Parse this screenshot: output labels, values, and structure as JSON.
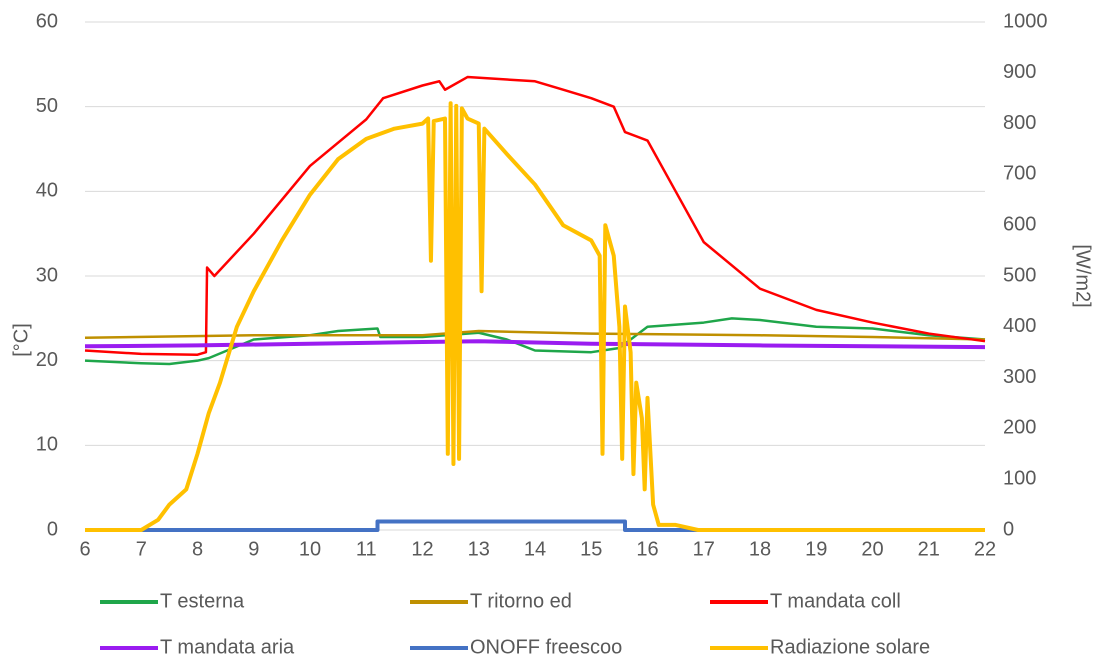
{
  "chart_data": {
    "type": "line",
    "ylabel": "[°C]",
    "y2label": "[W/m2]",
    "xlim": [
      6,
      22
    ],
    "xticks": [
      6,
      7,
      8,
      9,
      10,
      11,
      12,
      13,
      14,
      15,
      16,
      17,
      18,
      19,
      20,
      21,
      22
    ],
    "ylim": [
      0,
      60
    ],
    "yticks": [
      0,
      10,
      20,
      30,
      40,
      50,
      60
    ],
    "y2lim": [
      0,
      1000
    ],
    "y2ticks": [
      0,
      100,
      200,
      300,
      400,
      500,
      600,
      700,
      800,
      900,
      1000
    ],
    "grid": true,
    "legend": "bottom",
    "series": [
      {
        "name": "T esterna",
        "color": "#1fa64a",
        "x": [
          6,
          7,
          7.5,
          8,
          8.2,
          9,
          10,
          10.5,
          11.2,
          11.25,
          12,
          13,
          13.5,
          14,
          15,
          15.5,
          16,
          17,
          17.5,
          18,
          19,
          20,
          21,
          22
        ],
        "values": [
          20,
          19.7,
          19.6,
          20,
          20.3,
          22.5,
          23,
          23.5,
          23.8,
          22.8,
          22.8,
          23.3,
          22.5,
          21.2,
          21,
          21.5,
          24,
          24.5,
          25,
          24.8,
          24,
          23.8,
          23,
          22.5
        ]
      },
      {
        "name": "T ritorno ed",
        "color": "#bf9000",
        "x": [
          6,
          9,
          12,
          13,
          15,
          18,
          20,
          22
        ],
        "values": [
          22.7,
          23,
          23,
          23.5,
          23.2,
          23,
          22.8,
          22.5
        ]
      },
      {
        "name": "T mandata coll",
        "color": "#ff0000",
        "x": [
          6,
          7,
          8,
          8.15,
          8.17,
          8.3,
          9,
          10,
          11,
          11.3,
          12,
          12.3,
          12.4,
          12.8,
          14,
          14.5,
          15,
          15.4,
          15.6,
          16,
          16.5,
          17,
          18,
          19,
          20,
          21,
          22
        ],
        "values": [
          21.2,
          20.8,
          20.7,
          21,
          31,
          30,
          35,
          43,
          48.5,
          51,
          52.5,
          53,
          52,
          53.5,
          53,
          52,
          51,
          50,
          47,
          46,
          40,
          34,
          28.5,
          26,
          24.5,
          23.2,
          22.3
        ]
      },
      {
        "name": "T mandata aria",
        "color": "#9a1cf0",
        "x": [
          6,
          8,
          10,
          12,
          13,
          15,
          18,
          22
        ],
        "values": [
          21.7,
          21.8,
          22,
          22.2,
          22.3,
          22,
          21.8,
          21.6
        ]
      },
      {
        "name": "ONOFF freescoo",
        "color": "#4472c4",
        "x": [
          6,
          11.2,
          11.2,
          15.6,
          15.6,
          22
        ],
        "values": [
          0,
          0,
          1,
          1,
          0,
          0
        ]
      },
      {
        "name": "Radiazione solare",
        "color": "#ffc000",
        "axis": "y2",
        "x": [
          6,
          7,
          7.3,
          7.5,
          7.8,
          8,
          8.2,
          8.4,
          8.7,
          9,
          9.5,
          10,
          10.5,
          11,
          11.5,
          12,
          12.1,
          12.15,
          12.2,
          12.4,
          12.45,
          12.5,
          12.55,
          12.6,
          12.65,
          12.7,
          12.8,
          13,
          13.05,
          13.1,
          13.5,
          14,
          14.5,
          15,
          15.15,
          15.2,
          15.25,
          15.4,
          15.5,
          15.55,
          15.6,
          15.7,
          15.75,
          15.8,
          15.9,
          15.95,
          16,
          16.1,
          16.2,
          16.5,
          16.9,
          22
        ],
        "values": [
          0,
          0,
          20,
          50,
          80,
          150,
          230,
          290,
          400,
          470,
          570,
          660,
          730,
          770,
          790,
          800,
          810,
          530,
          805,
          810,
          150,
          840,
          130,
          835,
          140,
          830,
          810,
          800,
          470,
          790,
          740,
          680,
          600,
          570,
          540,
          150,
          600,
          540,
          400,
          140,
          440,
          350,
          110,
          290,
          220,
          80,
          260,
          50,
          10,
          10,
          0,
          0
        ]
      }
    ]
  }
}
